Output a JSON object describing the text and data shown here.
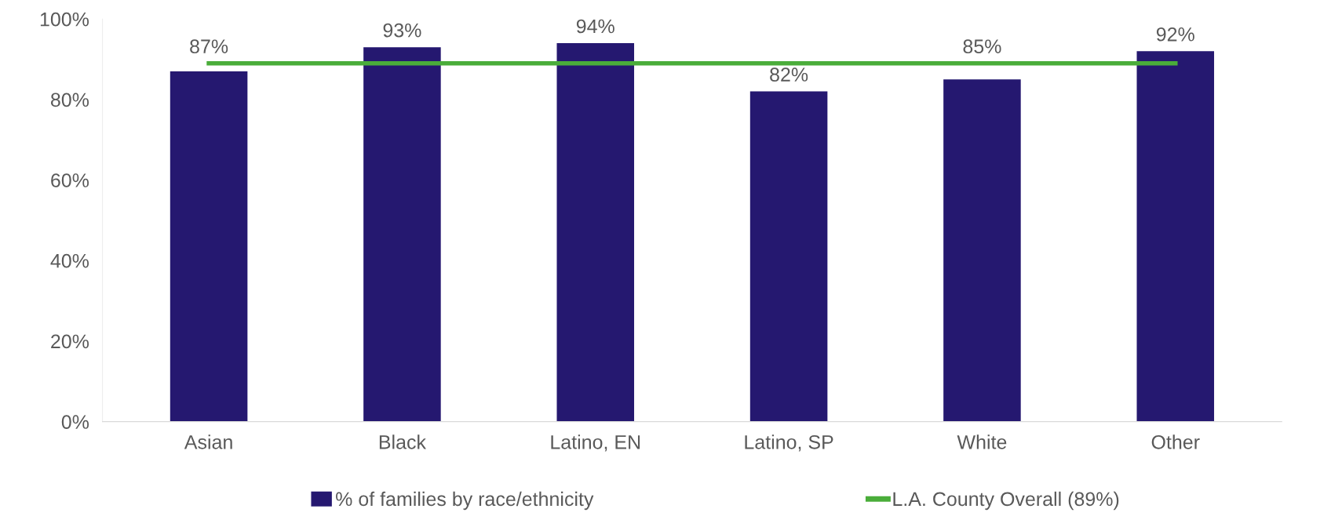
{
  "chart_data": {
    "type": "bar",
    "categories": [
      "Asian",
      "Black",
      "Latino, EN",
      "Latino, SP",
      "White",
      "Other"
    ],
    "series": [
      {
        "name": "% of families by race/ethnicity",
        "color": "#251870",
        "values": [
          87,
          93,
          94,
          82,
          85,
          92
        ],
        "value_labels": [
          "87%",
          "93%",
          "94%",
          "82%",
          "85%",
          "92%"
        ]
      },
      {
        "name": "L.A. County Overall (89%)",
        "type": "line",
        "color": "#4aad3a",
        "values": [
          89,
          89,
          89,
          89,
          89,
          89
        ],
        "marker": "none",
        "line_style": "solid"
      }
    ],
    "ylim": [
      0,
      100
    ],
    "yticks": [
      {
        "value": 0,
        "label": "0%"
      },
      {
        "value": 20,
        "label": "20%"
      },
      {
        "value": 40,
        "label": "40%"
      },
      {
        "value": 60,
        "label": "60%"
      },
      {
        "value": 80,
        "label": "80%"
      },
      {
        "value": 100,
        "label": "100%"
      }
    ],
    "grid": false,
    "legend": "bottom"
  }
}
